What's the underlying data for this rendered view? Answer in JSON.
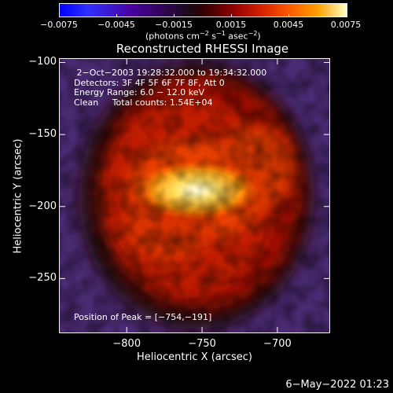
{
  "colorbar": {
    "tick_labels": [
      "−0.0075",
      "−0.0045",
      "−0.0015",
      "0.0015",
      "0.0045",
      "0.0075"
    ],
    "unit_main": "(photons cm",
    "unit_exp1": "−2",
    "unit_mid": " s",
    "unit_exp2": "−1",
    "unit_tail": " asec",
    "unit_exp3": "−2",
    "unit_close": ")",
    "range": [
      -0.0075,
      0.0075
    ]
  },
  "plot": {
    "title": "Reconstructed RHESSI Image",
    "info_lines": [
      " 2−Oct−2003 19:28:32.000 to 19:34:32.000",
      "Detectors: 3F 4F 5F 6F 7F 8F, Att 0",
      "Energy Range: 6.0 − 12.0 keV",
      "Clean     Total counts: 1.54E+04"
    ],
    "peak_label": "Position of Peak = [−754,−191]",
    "x_axis": {
      "label": "Heliocentric X (arcsec)",
      "range": [
        -845,
        -665
      ],
      "ticks": [
        -800,
        -750,
        -700
      ],
      "tick_labels": [
        "−800",
        "−750",
        "−700"
      ]
    },
    "y_axis": {
      "label": "Heliocentric Y (arcsec)",
      "range": [
        -288,
        -97
      ],
      "ticks": [
        -100,
        -150,
        -200,
        -250
      ],
      "tick_labels": [
        "−100",
        "−150",
        "−200",
        "−250"
      ]
    }
  },
  "footer": {
    "timestamp": "6−May−2022 01:23"
  }
}
